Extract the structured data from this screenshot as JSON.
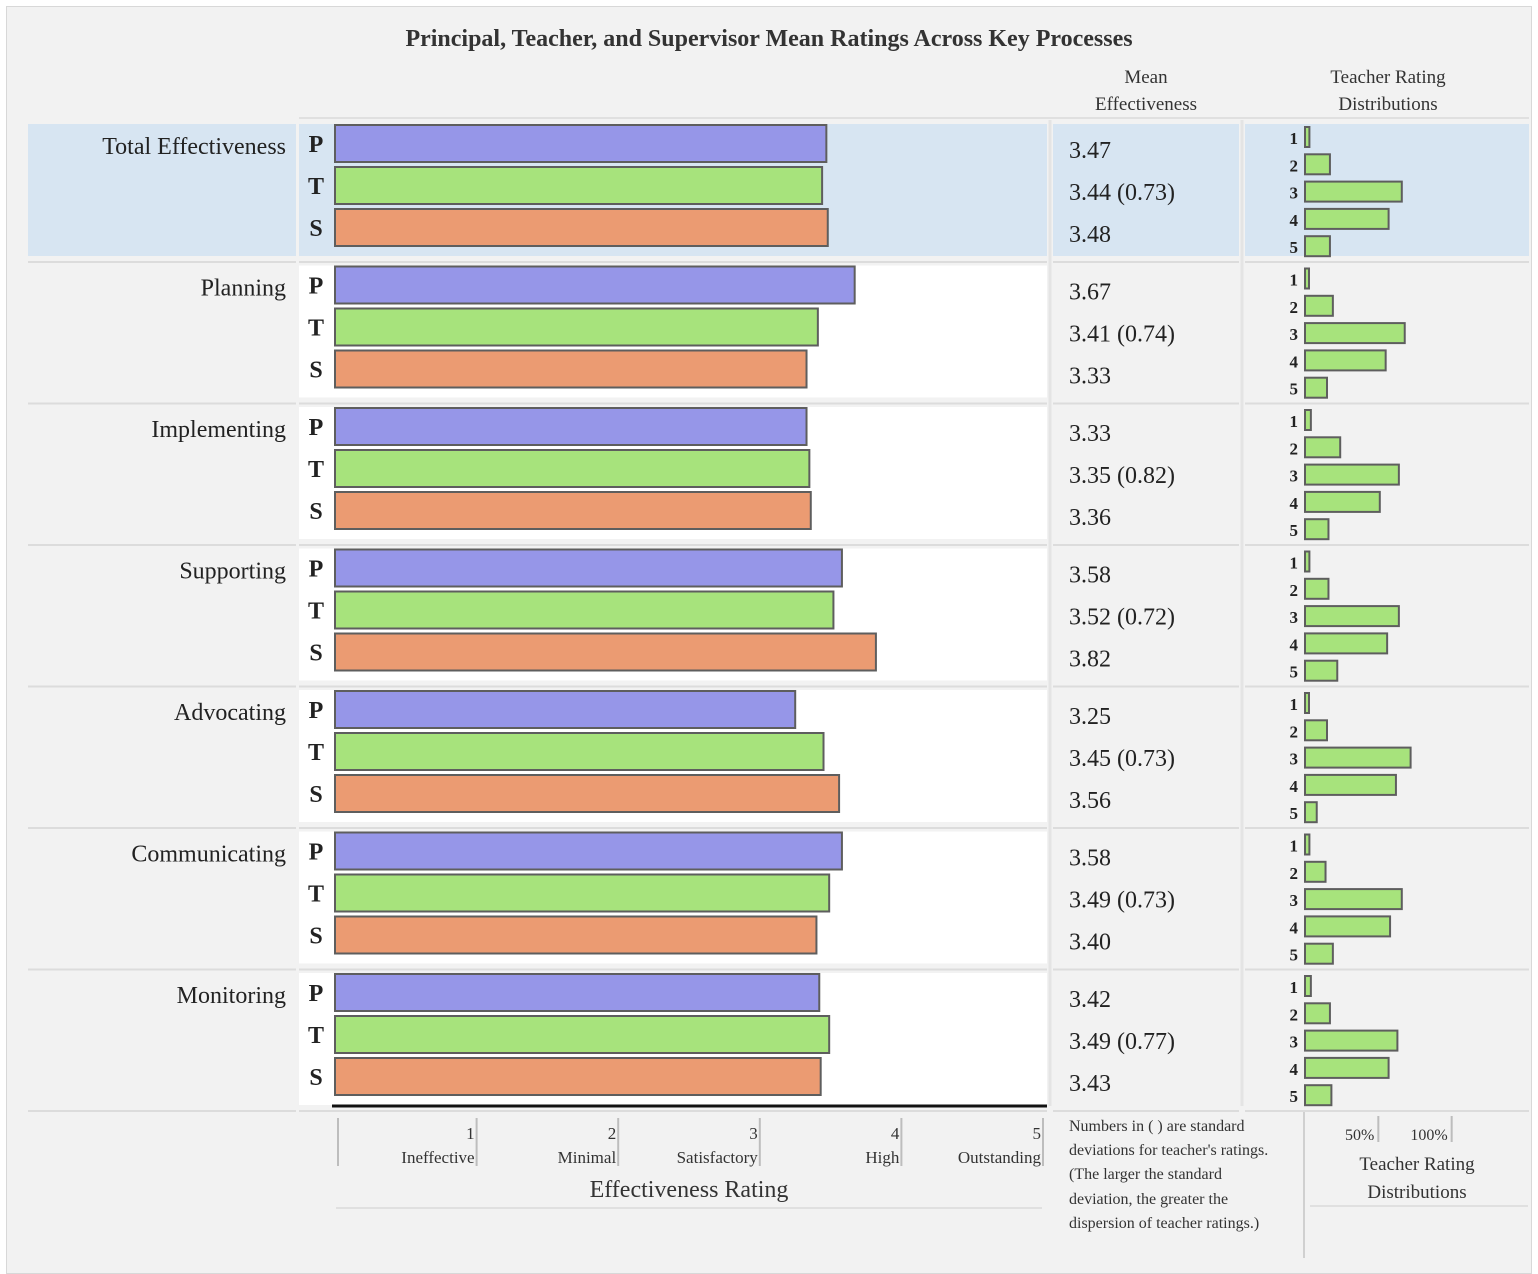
{
  "title": "Principal, Teacher, and Supervisor Mean Ratings Across Key Processes",
  "headers": {
    "mean": [
      "Mean",
      "Effectiveness"
    ],
    "distribution": [
      "Teacher Rating",
      "Distributions"
    ]
  },
  "note": "Numbers in ( ) are standard deviations for teacher's ratings. (The larger the standard deviation, the greater the dispersion of teacher ratings.)",
  "colors": {
    "principal": "#9696e8",
    "teacher": "#a7e37c",
    "supervisor": "#eb9b72",
    "highlight": "#d7e5f2",
    "bar_stroke": "#5e5e5e"
  },
  "chart_data": [
    {
      "type": "bar",
      "orientation": "horizontal",
      "xlabel": "Effectiveness Rating",
      "xlim": [
        0,
        5
      ],
      "x_ticks": [
        {
          "value": 1,
          "label": "1",
          "sublabel": "Ineffective"
        },
        {
          "value": 2,
          "label": "2",
          "sublabel": "Minimal"
        },
        {
          "value": 3,
          "label": "3",
          "sublabel": "Satisfactory"
        },
        {
          "value": 4,
          "label": "4",
          "sublabel": "High"
        },
        {
          "value": 5,
          "label": "5",
          "sublabel": "Outstanding"
        }
      ],
      "rater_labels": [
        "P",
        "T",
        "S"
      ],
      "groups": [
        {
          "name": "Total Effectiveness",
          "highlight": true,
          "P": 3.47,
          "T": 3.44,
          "S": 3.48,
          "P_label": "3.47",
          "T_label": "3.44 (0.73)",
          "S_label": "3.48",
          "dist": [
            0.03,
            0.17,
            0.66,
            0.57,
            0.17
          ]
        },
        {
          "name": "Planning",
          "highlight": false,
          "P": 3.67,
          "T": 3.41,
          "S": 3.33,
          "P_label": "3.67",
          "T_label": "3.41 (0.74)",
          "S_label": "3.33",
          "dist": [
            0.02,
            0.19,
            0.68,
            0.55,
            0.15
          ]
        },
        {
          "name": "Implementing",
          "highlight": false,
          "P": 3.33,
          "T": 3.35,
          "S": 3.36,
          "P_label": "3.33",
          "T_label": "3.35 (0.82)",
          "S_label": "3.36",
          "dist": [
            0.04,
            0.24,
            0.64,
            0.51,
            0.16
          ]
        },
        {
          "name": "Supporting",
          "highlight": false,
          "P": 3.58,
          "T": 3.52,
          "S": 3.82,
          "P_label": "3.58",
          "T_label": "3.52 (0.72)",
          "S_label": "3.82",
          "dist": [
            0.03,
            0.16,
            0.64,
            0.56,
            0.22
          ]
        },
        {
          "name": "Advocating",
          "highlight": false,
          "P": 3.25,
          "T": 3.45,
          "S": 3.56,
          "P_label": "3.25",
          "T_label": "3.45 (0.73)",
          "S_label": "3.56",
          "dist": [
            0.02,
            0.15,
            0.72,
            0.62,
            0.08
          ]
        },
        {
          "name": "Communicating",
          "highlight": false,
          "P": 3.58,
          "T": 3.49,
          "S": 3.4,
          "P_label": "3.58",
          "T_label": "3.49 (0.73)",
          "S_label": "3.40",
          "dist": [
            0.03,
            0.14,
            0.66,
            0.58,
            0.19
          ]
        },
        {
          "name": "Monitoring",
          "highlight": false,
          "P": 3.42,
          "T": 3.49,
          "S": 3.43,
          "P_label": "3.42",
          "T_label": "3.49 (0.77)",
          "S_label": "3.43",
          "dist": [
            0.04,
            0.17,
            0.63,
            0.57,
            0.18
          ]
        }
      ]
    },
    {
      "type": "bar",
      "orientation": "horizontal",
      "xlabel": [
        "Teacher Rating",
        "Distributions"
      ],
      "categories": [
        "1",
        "2",
        "3",
        "4",
        "5"
      ],
      "xlim": [
        0,
        1.5
      ],
      "x_ticks": [
        {
          "value": 0.5,
          "label": "50%"
        },
        {
          "value": 1.0,
          "label": "100%"
        }
      ]
    }
  ]
}
